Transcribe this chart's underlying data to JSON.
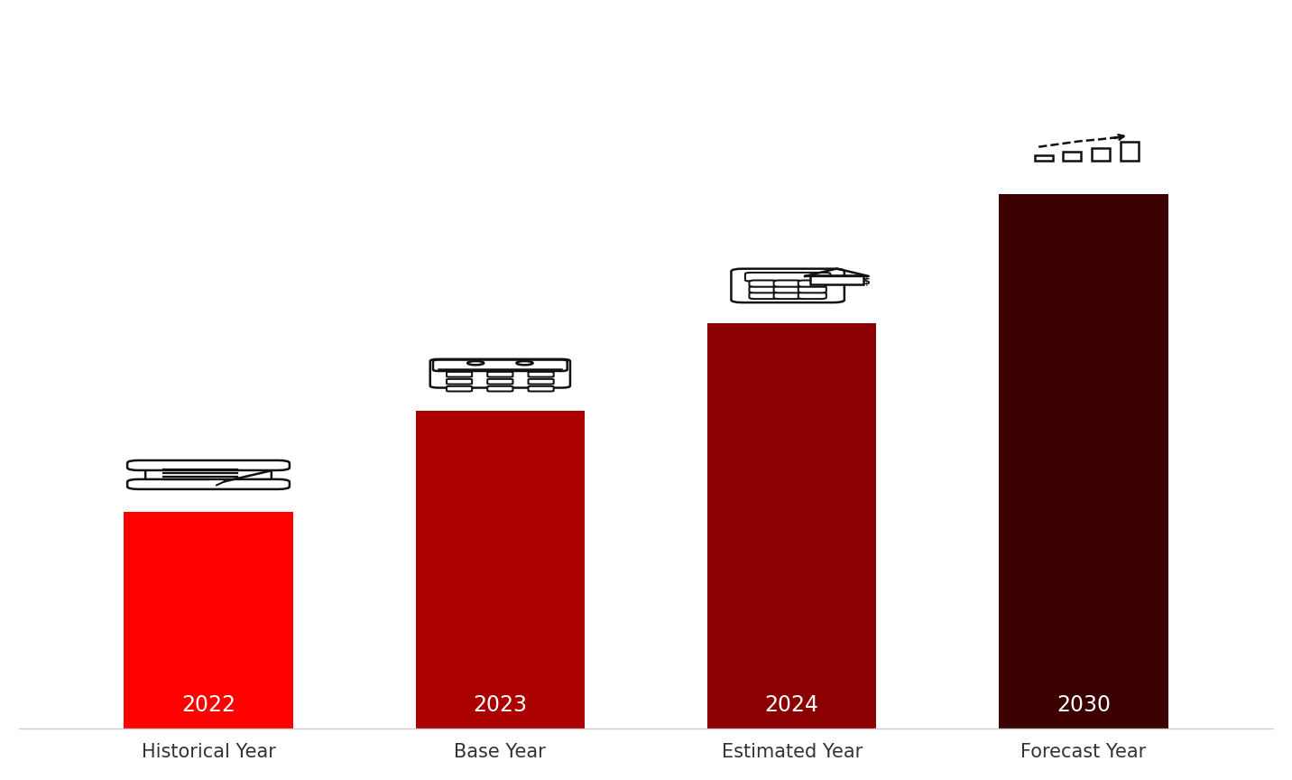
{
  "categories": [
    "Historical Year",
    "Base Year",
    "Estimated Year",
    "Forecast Year"
  ],
  "years": [
    "2022",
    "2023",
    "2024",
    "2030"
  ],
  "values": [
    3.2,
    4.7,
    6.0,
    7.9
  ],
  "bar_colors": [
    "#FF0000",
    "#AA0000",
    "#8B0000",
    "#3D0000"
  ],
  "background_color": "#FFFFFF",
  "bar_width": 0.58,
  "ylim": [
    0,
    10.5
  ],
  "year_fontsize": 17,
  "label_fontsize": 15,
  "year_color": "#FFFFFF",
  "icon_color": "#111111",
  "icon_lw": 1.8
}
